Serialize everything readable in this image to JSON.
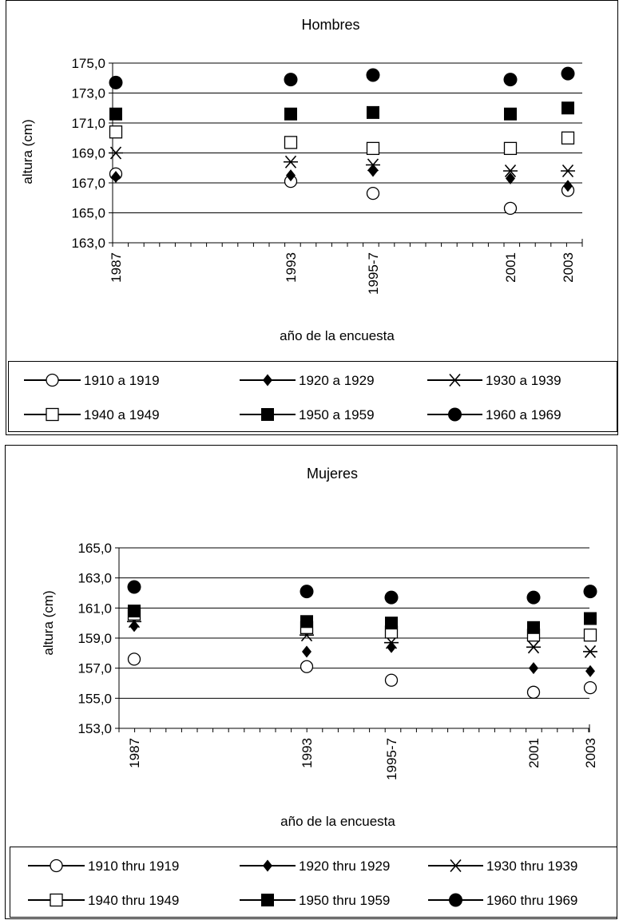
{
  "chart_data": [
    {
      "type": "scatter",
      "title": "Hombres",
      "xlabel": "año de la encuesta",
      "ylabel": "altura (cm)",
      "x_ticks": [
        "1987",
        "1993",
        "1995-7",
        "2001",
        "2003"
      ],
      "ylim": [
        163.0,
        175.0
      ],
      "y_ticks": [
        "163,0",
        "165,0",
        "167,0",
        "169,0",
        "171,0",
        "173,0",
        "175,0"
      ],
      "grid": true,
      "legend_placement": "bottom",
      "series": [
        {
          "name": "1910 a 1919",
          "marker": "circle-open",
          "values": [
            167.6,
            167.1,
            166.3,
            165.3,
            166.5
          ]
        },
        {
          "name": "1920 a 1929",
          "marker": "diamond",
          "values": [
            167.4,
            167.5,
            167.8,
            167.3,
            166.8
          ]
        },
        {
          "name": "1930 a 1939",
          "marker": "asterisk",
          "values": [
            169.0,
            168.4,
            168.2,
            167.8,
            167.8
          ]
        },
        {
          "name": "1940 a 1949",
          "marker": "square-open",
          "values": [
            170.4,
            169.7,
            169.3,
            169.3,
            170.0
          ]
        },
        {
          "name": "1950 a 1959",
          "marker": "square",
          "values": [
            171.6,
            171.6,
            171.7,
            171.6,
            172.0
          ]
        },
        {
          "name": "1960 a 1969",
          "marker": "circle",
          "values": [
            173.7,
            173.9,
            174.2,
            173.9,
            174.3
          ]
        }
      ]
    },
    {
      "type": "scatter",
      "title": "Mujeres",
      "xlabel": "año de la encuesta",
      "ylabel": "altura (cm)",
      "x_ticks": [
        "1987",
        "1993",
        "1995-7",
        "2001",
        "2003"
      ],
      "ylim": [
        153.0,
        165.0
      ],
      "y_ticks": [
        "153,0",
        "155,0",
        "157,0",
        "159,0",
        "161,0",
        "163,0",
        "165,0"
      ],
      "grid": true,
      "legend_placement": "bottom",
      "series": [
        {
          "name": "1910 thru 1919",
          "marker": "circle-open",
          "values": [
            157.6,
            157.1,
            156.2,
            155.4,
            155.7
          ]
        },
        {
          "name": "1920 thru 1929",
          "marker": "diamond",
          "values": [
            159.8,
            158.1,
            158.4,
            157.0,
            156.8
          ]
        },
        {
          "name": "1930 thru 1939",
          "marker": "asterisk",
          "values": [
            160.1,
            159.2,
            158.7,
            158.4,
            158.1
          ]
        },
        {
          "name": "1940 thru 1949",
          "marker": "square-open",
          "values": [
            160.6,
            159.7,
            159.4,
            159.2,
            159.2
          ]
        },
        {
          "name": "1950 thru 1959",
          "marker": "square",
          "values": [
            160.8,
            160.1,
            160.0,
            159.7,
            160.3
          ]
        },
        {
          "name": "1960 thru 1969",
          "marker": "circle",
          "values": [
            162.4,
            162.1,
            161.7,
            161.7,
            162.1
          ]
        }
      ]
    }
  ]
}
